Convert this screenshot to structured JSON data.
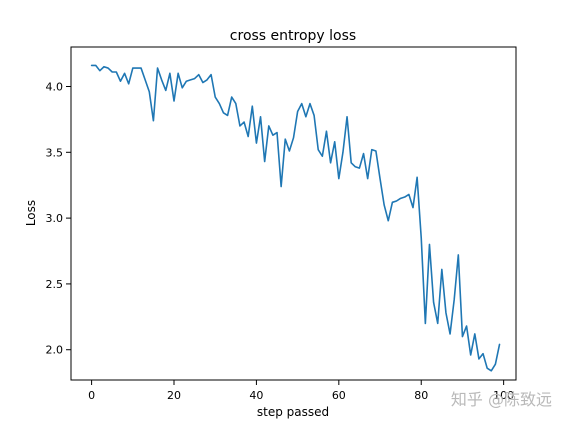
{
  "chart_data": {
    "type": "line",
    "title": "cross entropy loss",
    "xlabel": "step passed",
    "ylabel": "Loss",
    "xlim": [
      -5,
      103
    ],
    "ylim": [
      1.77,
      4.3
    ],
    "xticks": [
      0,
      20,
      40,
      60,
      80,
      100
    ],
    "xtick_labels": [
      "0",
      "20",
      "40",
      "60",
      "80",
      "100"
    ],
    "yticks": [
      2.0,
      2.5,
      3.0,
      3.5,
      4.0
    ],
    "ytick_labels": [
      "2.0",
      "2.5",
      "3.0",
      "3.5",
      "4.0"
    ],
    "grid": false,
    "series": [
      {
        "color": "#1f77b4",
        "x": [
          0,
          1,
          2,
          3,
          4,
          5,
          6,
          7,
          8,
          9,
          10,
          11,
          12,
          13,
          14,
          15,
          16,
          17,
          18,
          19,
          20,
          21,
          22,
          23,
          24,
          25,
          26,
          27,
          28,
          29,
          30,
          31,
          32,
          33,
          34,
          35,
          36,
          37,
          38,
          39,
          40,
          41,
          42,
          43,
          44,
          45,
          46,
          47,
          48,
          49,
          50,
          51,
          52,
          53,
          54,
          55,
          56,
          57,
          58,
          59,
          60,
          61,
          62,
          63,
          64,
          65,
          66,
          67,
          68,
          69,
          70,
          71,
          72,
          73,
          74,
          75,
          76,
          77,
          78,
          79,
          80,
          81,
          82,
          83,
          84,
          85,
          86,
          87,
          88,
          89,
          90,
          91,
          92,
          93,
          94,
          95,
          96,
          97,
          98,
          99
        ],
        "y": [
          4.16,
          4.16,
          4.12,
          4.15,
          4.14,
          4.11,
          4.11,
          4.04,
          4.1,
          4.02,
          4.14,
          4.14,
          4.14,
          4.05,
          3.96,
          3.74,
          4.14,
          4.05,
          3.97,
          4.1,
          3.89,
          4.1,
          3.99,
          4.04,
          4.05,
          4.06,
          4.09,
          4.03,
          4.05,
          4.09,
          3.92,
          3.87,
          3.8,
          3.78,
          3.92,
          3.87,
          3.7,
          3.73,
          3.62,
          3.85,
          3.57,
          3.77,
          3.43,
          3.7,
          3.63,
          3.65,
          3.24,
          3.6,
          3.51,
          3.61,
          3.81,
          3.87,
          3.77,
          3.87,
          3.78,
          3.52,
          3.47,
          3.66,
          3.42,
          3.58,
          3.3,
          3.5,
          3.77,
          3.42,
          3.39,
          3.38,
          3.49,
          3.3,
          3.52,
          3.51,
          3.3,
          3.1,
          2.98,
          3.12,
          3.13,
          3.15,
          3.16,
          3.18,
          3.08,
          3.31,
          2.85,
          2.2,
          2.8,
          2.36,
          2.2,
          2.61,
          2.28,
          2.12,
          2.38,
          2.72,
          2.1,
          2.18,
          1.96,
          2.12,
          1.93,
          1.97,
          1.86,
          1.84,
          1.89,
          2.04
        ]
      }
    ]
  },
  "watermark": "知乎 @陈致远",
  "colors": {
    "line": "#1f77b4",
    "axes": "#000000",
    "background": "#ffffff"
  }
}
